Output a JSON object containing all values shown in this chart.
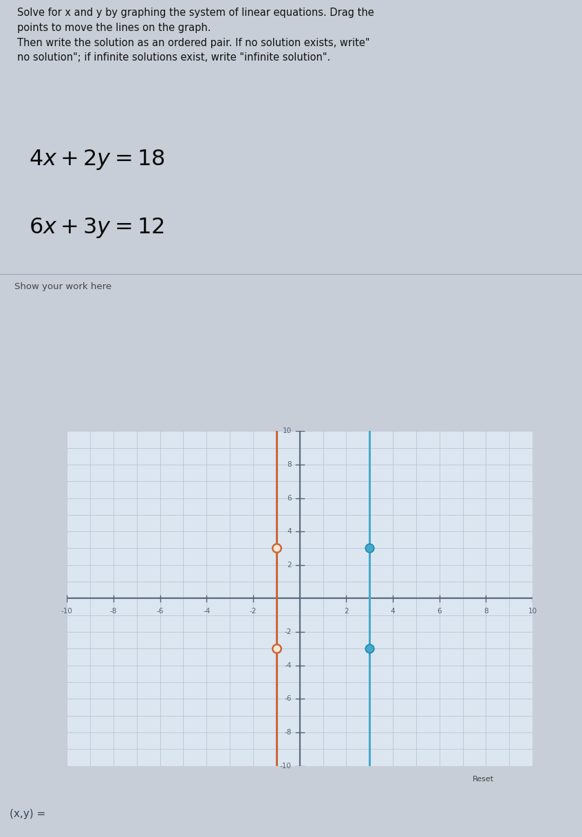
{
  "instructions_line1": "Solve for x and y by graphing the system of linear equations. Drag the",
  "instructions_line2": "points to move the lines on the graph.",
  "instructions_line3": "Then write the solution as an ordered pair. If no solution exists, write\"",
  "instructions_line4": "no solution\"; if infinite solutions exist, write \"infinite solution\".",
  "eq1": "$4x + 2y = 18$",
  "eq2": "$6x + 3y = 12$",
  "show_work_label": "Show your work here",
  "answer_label": "(x,y) =",
  "reset_label": "Reset",
  "top_bg": "#d0d5de",
  "work_bg": "#dde2ea",
  "graph_panel_bg": "#d8dde6",
  "graph_bg": "#dce6f0",
  "grid_color": "#b0bece",
  "axis_color": "#5a6a80",
  "orange_line_x": -1,
  "orange_dot1": [
    -1,
    3
  ],
  "orange_dot2": [
    -1,
    -3
  ],
  "orange_color": "#cc6633",
  "blue_line_x": 3,
  "blue_dot1": [
    3,
    3
  ],
  "blue_dot2": [
    3,
    -3
  ],
  "blue_color": "#44aacc",
  "xlim": [
    -10,
    10
  ],
  "ylim": [
    -10,
    10
  ],
  "xticks": [
    -10,
    -8,
    -6,
    -4,
    -2,
    2,
    4,
    6,
    8,
    10
  ],
  "yticks": [
    -10,
    -8,
    -6,
    -4,
    -2,
    2,
    4,
    6,
    8,
    10
  ],
  "overall_bg": "#c8ced8",
  "tick_color": "#556070",
  "tick_fontsize": 7.5
}
